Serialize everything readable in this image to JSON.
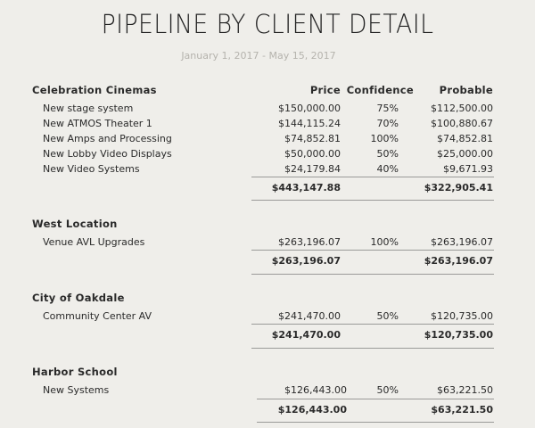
{
  "report": {
    "title": "PIPELINE BY CLIENT DETAIL",
    "date_range": "January 1, 2017 - May 15, 2017"
  },
  "columns": {
    "price": "Price",
    "confidence": "Confidence",
    "probable": "Probable"
  },
  "clients": [
    {
      "name": "Celebration Cinemas",
      "items": [
        {
          "name": "New stage system",
          "price": "$150,000.00",
          "confidence": "75%",
          "probable": "$112,500.00"
        },
        {
          "name": "New ATMOS Theater 1",
          "price": "$144,115.24",
          "confidence": "70%",
          "probable": "$100,880.67"
        },
        {
          "name": "New Amps and Processing",
          "price": "$74,852.81",
          "confidence": "100%",
          "probable": "$74,852.81"
        },
        {
          "name": "New Lobby Video Displays",
          "price": "$50,000.00",
          "confidence": "50%",
          "probable": "$25,000.00"
        },
        {
          "name": "New Video Systems",
          "price": "$24,179.84",
          "confidence": "40%",
          "probable": "$9,671.93"
        }
      ],
      "total_price": "$443,147.88",
      "total_probable": "$322,905.41"
    },
    {
      "name": "West Location",
      "items": [
        {
          "name": "Venue AVL Upgrades",
          "price": "$263,196.07",
          "confidence": "100%",
          "probable": "$263,196.07"
        }
      ],
      "total_price": "$263,196.07",
      "total_probable": "$263,196.07"
    },
    {
      "name": "City of Oakdale",
      "items": [
        {
          "name": "Community Center AV",
          "price": "$241,470.00",
          "confidence": "50%",
          "probable": "$120,735.00"
        }
      ],
      "total_price": "$241,470.00",
      "total_probable": "$120,735.00"
    },
    {
      "name": "Harbor School",
      "items": [
        {
          "name": "New Systems",
          "price": "$126,443.00",
          "confidence": "50%",
          "probable": "$63,221.50"
        }
      ],
      "total_price": "$126,443.00",
      "total_probable": "$63,221.50"
    }
  ]
}
